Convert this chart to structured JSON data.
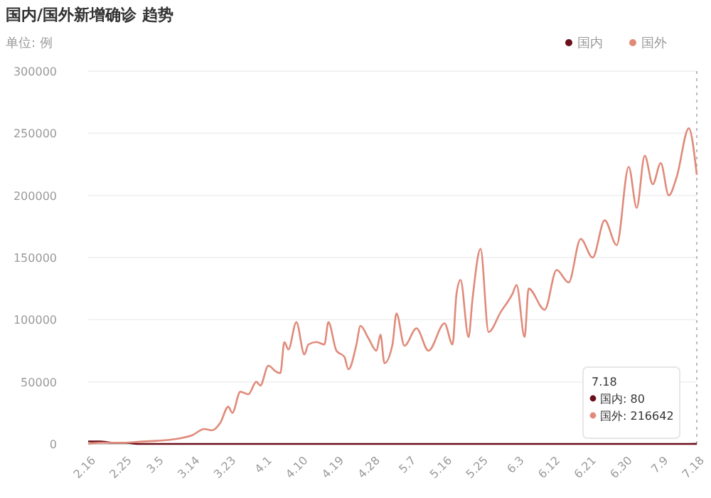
{
  "chart_data": {
    "type": "line",
    "title": "国内/国外新增确诊 趋势",
    "subtitle": "单位: 例",
    "x": [
      "--02-16",
      "--02-19",
      "--02-22",
      "--02-25",
      "--03-01",
      "--03-05",
      "--03-10",
      "--03-14",
      "--03-17",
      "--03-19",
      "--03-21",
      "--03-23",
      "--03-24",
      "--03-26",
      "--03-28",
      "--03-30",
      "--03-31",
      "--04-02",
      "--04-04",
      "--04-05",
      "--04-06",
      "--04-07",
      "--04-09",
      "--04-11",
      "--04-12",
      "--04-14",
      "--04-16",
      "--04-17",
      "--04-19",
      "--04-21",
      "--04-22",
      "--04-24",
      "--04-25",
      "--04-27",
      "--04-29",
      "--04-30",
      "--05-01",
      "--05-03",
      "--05-04",
      "--05-06",
      "--05-09",
      "--05-12",
      "--05-16",
      "--05-18",
      "--05-19",
      "--05-20",
      "--05-22",
      "--05-23",
      "--05-25",
      "--05-27",
      "--05-30",
      "--06-02",
      "--06-03",
      "--06-05",
      "--06-06",
      "--06-10",
      "--06-13",
      "--06-16",
      "--06-19",
      "--06-22",
      "--06-25",
      "--06-28",
      "--07-01",
      "--07-03",
      "--07-05",
      "--07-07",
      "--07-09",
      "--07-11",
      "--07-13",
      "--07-16",
      "--07-18"
    ],
    "series": [
      {
        "name": "国内",
        "color": "#6b0f1a",
        "values": [
          2000,
          2000,
          1000,
          1000,
          0,
          0,
          0,
          0,
          0,
          0,
          0,
          0,
          0,
          0,
          0,
          0,
          0,
          0,
          0,
          0,
          0,
          0,
          0,
          0,
          0,
          0,
          0,
          0,
          0,
          0,
          0,
          0,
          0,
          0,
          0,
          0,
          0,
          0,
          0,
          0,
          0,
          0,
          0,
          0,
          0,
          0,
          0,
          0,
          0,
          0,
          0,
          0,
          0,
          0,
          0,
          0,
          0,
          0,
          0,
          0,
          0,
          0,
          0,
          0,
          0,
          0,
          0,
          0,
          0,
          0,
          80
        ]
      },
      {
        "name": "国外",
        "color": "#e08a7a",
        "values": [
          0,
          1000,
          1000,
          1000,
          1800,
          2500,
          4000,
          7000,
          12000,
          11000,
          17000,
          30000,
          25000,
          42000,
          40000,
          50000,
          47000,
          63000,
          58000,
          57000,
          82000,
          76000,
          98000,
          72000,
          80000,
          82000,
          80000,
          98000,
          75000,
          70000,
          60000,
          80000,
          95000,
          85000,
          75000,
          88000,
          65000,
          80000,
          105000,
          79000,
          93000,
          75000,
          97000,
          80000,
          121000,
          132000,
          86000,
          117000,
          157000,
          90000,
          106000,
          121000,
          128000,
          86000,
          125000,
          108000,
          140000,
          130000,
          165000,
          150000,
          180000,
          160000,
          223000,
          190000,
          232000,
          209000,
          226000,
          200000,
          215000,
          254000,
          216642
        ]
      }
    ],
    "ylim": [
      0,
      300000
    ],
    "yticks": [
      0,
      50000,
      100000,
      150000,
      200000,
      250000,
      300000
    ],
    "xlim": [
      "--02-16",
      "--07-18"
    ],
    "xticks": [
      {
        "value": "--02-16",
        "label": "2.16"
      },
      {
        "value": "--02-25",
        "label": "2.25"
      },
      {
        "value": "--03-05",
        "label": "3.5"
      },
      {
        "value": "--03-14",
        "label": "3.14"
      },
      {
        "value": "--03-23",
        "label": "3.23"
      },
      {
        "value": "--04-01",
        "label": "4.1"
      },
      {
        "value": "--04-10",
        "label": "4.10"
      },
      {
        "value": "--04-19",
        "label": "4.19"
      },
      {
        "value": "--04-28",
        "label": "4.28"
      },
      {
        "value": "--05-07",
        "label": "5.7"
      },
      {
        "value": "--05-16",
        "label": "5.16"
      },
      {
        "value": "--05-25",
        "label": "5.25"
      },
      {
        "value": "--06-03",
        "label": "6.3"
      },
      {
        "value": "--06-12",
        "label": "6.12"
      },
      {
        "value": "--06-21",
        "label": "6.21"
      },
      {
        "value": "--06-30",
        "label": "6.30"
      },
      {
        "value": "--07-09",
        "label": "7.9"
      },
      {
        "value": "--07-18",
        "label": "7.18"
      }
    ],
    "grid": "y",
    "legend": "top right",
    "marker": "none",
    "line_style": "solid",
    "ref_lines": [
      {
        "axis": "x",
        "value": "--07-18",
        "label": null,
        "color": "#bbbbbb",
        "line_style": "dotted"
      }
    ],
    "annotations": [
      "7.18",
      "国内: 80",
      "国外: 216642"
    ]
  }
}
